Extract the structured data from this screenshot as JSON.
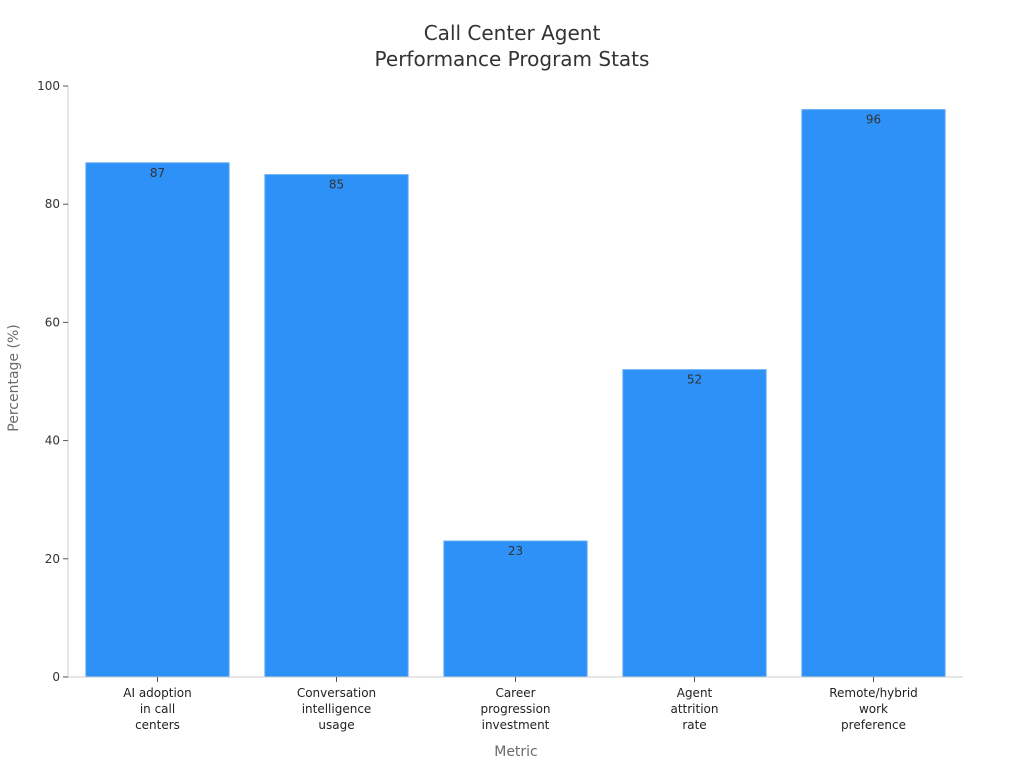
{
  "chart_data": {
    "type": "bar",
    "title_lines": [
      "Call Center Agent",
      "Performance Program Stats"
    ],
    "xlabel": "Metric",
    "ylabel": "Percentage (%)",
    "ylim": [
      0,
      100
    ],
    "yticks": [
      "0",
      "20",
      "40",
      "60",
      "80",
      "100"
    ],
    "categories": [
      [
        "AI adoption",
        "in call",
        "centers"
      ],
      [
        "Conversation",
        "intelligence",
        "usage"
      ],
      [
        "Career",
        "progression",
        "investment"
      ],
      [
        "Agent",
        "attrition",
        "rate"
      ],
      [
        "Remote/hybrid",
        "work",
        "preference"
      ]
    ],
    "values": [
      87,
      85,
      23,
      52,
      96
    ],
    "value_labels": [
      "87",
      "85",
      "23",
      "52",
      "96"
    ],
    "bar_color": "#2d91f7",
    "grid": false,
    "legend": "none"
  }
}
